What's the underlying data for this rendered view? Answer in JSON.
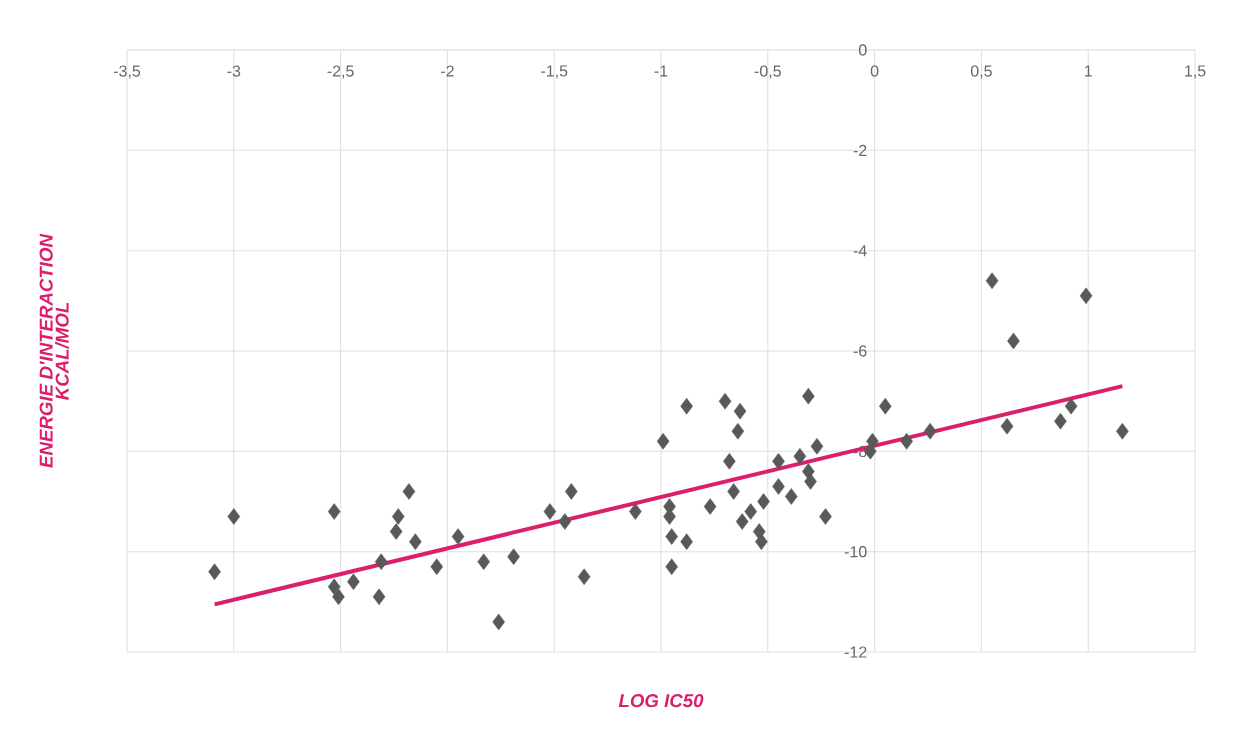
{
  "chart_data": {
    "type": "scatter",
    "xlabel": "LOG IC50",
    "ylabel": "ENERGIE D'INTERACTION KCAL/MOL",
    "xlim": [
      -3.5,
      1.5
    ],
    "ylim": [
      -12,
      0
    ],
    "xticks": [
      {
        "value": -3.5,
        "label": "-3,5"
      },
      -3,
      {
        "value": -2.5,
        "label": "-2,5"
      },
      -2,
      {
        "value": -1.5,
        "label": "-1,5"
      },
      -1,
      {
        "value": -0.5,
        "label": "-0,5"
      },
      0,
      {
        "value": 0.5,
        "label": "0,5"
      },
      1,
      {
        "value": 1.5,
        "label": "1,5"
      }
    ],
    "yticks": [
      0,
      -2,
      -4,
      -6,
      -8,
      -10,
      -12
    ],
    "grid": true,
    "series": [
      {
        "type": "scatter",
        "marker": "diamond",
        "color": "#595959",
        "x": [
          -3.09,
          -3.0,
          -2.53,
          -2.18,
          -2.23,
          -2.24,
          -2.15,
          -2.31,
          -1.95,
          -2.05,
          -2.53,
          -2.51,
          -2.44,
          -2.32,
          -1.83,
          -1.69,
          -1.76,
          -1.36,
          -1.52,
          -1.42,
          -1.45,
          -1.12,
          -0.99,
          -0.88,
          -0.96,
          -0.96,
          -0.95,
          -0.88,
          -0.95,
          -0.77,
          -0.7,
          -0.63,
          -0.64,
          -0.68,
          -0.66,
          -0.62,
          -0.58,
          -0.54,
          -0.53,
          -0.52,
          -0.45,
          -0.45,
          -0.39,
          -0.35,
          -0.31,
          -0.3,
          -0.27,
          -0.31,
          -0.23,
          0.05,
          -0.01,
          -0.02,
          0.15,
          0.26,
          0.55,
          0.99,
          0.65,
          0.62,
          0.87,
          0.92,
          1.16
        ],
        "values": [
          -10.4,
          -9.3,
          -9.2,
          -8.8,
          -9.3,
          -9.6,
          -9.8,
          -10.2,
          -9.7,
          -10.3,
          -10.7,
          -10.9,
          -10.6,
          -10.9,
          -10.2,
          -10.1,
          -11.4,
          -10.5,
          -9.2,
          -8.8,
          -9.4,
          -9.2,
          -7.8,
          -7.1,
          -9.1,
          -9.3,
          -9.7,
          -9.8,
          -10.3,
          -9.1,
          -7.0,
          -7.2,
          -7.6,
          -8.2,
          -8.8,
          -9.4,
          -9.2,
          -9.6,
          -9.8,
          -9.0,
          -8.2,
          -8.7,
          -8.9,
          -8.1,
          -8.4,
          -8.6,
          -7.9,
          -6.9,
          -9.3,
          -7.1,
          -7.8,
          -8.0,
          -7.8,
          -7.6,
          -4.6,
          -4.9,
          -5.8,
          -7.5,
          -7.4,
          -7.1,
          -7.6
        ]
      },
      {
        "type": "line",
        "marker": "none",
        "color": "#dc1f6b",
        "x": [
          -3.09,
          1.16
        ],
        "values": [
          -11.05,
          -6.7
        ]
      }
    ]
  }
}
